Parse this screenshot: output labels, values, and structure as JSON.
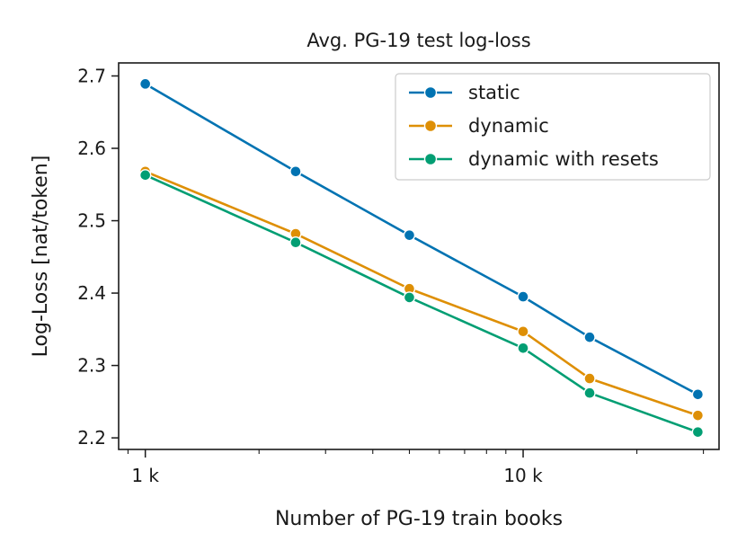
{
  "chart_data": {
    "type": "line",
    "title": "Avg. PG-19 test log-loss",
    "xlabel": "Number of PG-19 train books",
    "ylabel": "Log-Loss [nat/token]",
    "xscale": "log",
    "xlim": [
      850,
      33000
    ],
    "ylim": [
      2.184,
      2.718
    ],
    "x": [
      1000,
      2500,
      5000,
      10000,
      15000,
      29000
    ],
    "x_ticks": [
      {
        "value": 1000,
        "label": "1 k"
      },
      {
        "value": 10000,
        "label": "10 k"
      }
    ],
    "y_ticks": [
      {
        "value": 2.2,
        "label": "2.2"
      },
      {
        "value": 2.3,
        "label": "2.3"
      },
      {
        "value": 2.4,
        "label": "2.4"
      },
      {
        "value": 2.5,
        "label": "2.5"
      },
      {
        "value": 2.6,
        "label": "2.6"
      },
      {
        "value": 2.7,
        "label": "2.7"
      }
    ],
    "grid": false,
    "legend_position": "top-right",
    "series": [
      {
        "name": "static",
        "color": "#0173b2",
        "values": [
          2.689,
          2.568,
          2.48,
          2.395,
          2.339,
          2.26
        ]
      },
      {
        "name": "dynamic",
        "color": "#de8f05",
        "values": [
          2.568,
          2.482,
          2.406,
          2.347,
          2.282,
          2.231
        ]
      },
      {
        "name": "dynamic with resets",
        "color": "#029e73",
        "values": [
          2.563,
          2.47,
          2.394,
          2.324,
          2.262,
          2.208
        ]
      }
    ]
  }
}
